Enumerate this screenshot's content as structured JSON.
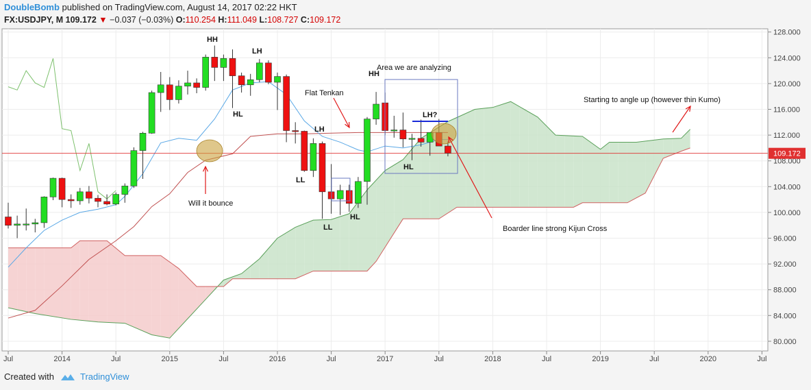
{
  "header": {
    "author": "DoubleBomb",
    "published": "published on TradingView.com, August 14, 2017 02:22 HKT",
    "symbol": "FX:USDJPY, M",
    "last": "109.172",
    "change": "−0.037 (−0.03%)",
    "o_label": "O:",
    "o_value": "110.254",
    "h_label": "H:",
    "h_value": "111.049",
    "l_label": "L:",
    "l_value": "108.727",
    "c_label": "C:",
    "c_value": "109.172"
  },
  "footer": {
    "created_with": "Created with",
    "brand": "TradingView"
  },
  "colors": {
    "up": "#22dd22",
    "down": "#ee1111",
    "tenkan": "#5aa8e6",
    "kijun": "#c05050",
    "senkou_a": "#5aa05a",
    "senkou_b": "#d06060",
    "chikou": "#7cc06c",
    "kumo_bull": "#c9e3c9",
    "kumo_bear": "#f5cbcb",
    "price_line": "#e03030"
  },
  "chart_data": {
    "type": "candlestick",
    "timeframe": "Monthly",
    "y_axis": {
      "min": 78.5,
      "max": 128.5,
      "ticks": [
        "80.000",
        "84.000",
        "88.000",
        "92.000",
        "96.000",
        "100.000",
        "104.000",
        "108.000",
        "112.000",
        "116.000",
        "120.000",
        "124.000",
        "128.000"
      ],
      "last_price": "109.172"
    },
    "x_axis": {
      "ticks": [
        "Jul",
        "2014",
        "Jul",
        "2015",
        "Jul",
        "2016",
        "Jul",
        "2017",
        "Jul",
        "2018",
        "Jul",
        "2019",
        "Jul",
        "2020",
        "Jul"
      ]
    },
    "candles": [
      {
        "t": "2013-07",
        "o": 99.3,
        "h": 101.5,
        "l": 97.5,
        "c": 98.0
      },
      {
        "t": "2013-08",
        "o": 98.0,
        "h": 99.5,
        "l": 96.0,
        "c": 98.2
      },
      {
        "t": "2013-09",
        "o": 98.2,
        "h": 100.6,
        "l": 97.2,
        "c": 98.2
      },
      {
        "t": "2013-10",
        "o": 98.2,
        "h": 99.0,
        "l": 96.9,
        "c": 98.4
      },
      {
        "t": "2013-11",
        "o": 98.4,
        "h": 102.5,
        "l": 97.6,
        "c": 102.4
      },
      {
        "t": "2013-12",
        "o": 102.4,
        "h": 105.4,
        "l": 101.9,
        "c": 105.3
      },
      {
        "t": "2014-01",
        "o": 105.3,
        "h": 105.4,
        "l": 100.8,
        "c": 102.0
      },
      {
        "t": "2014-02",
        "o": 102.0,
        "h": 102.8,
        "l": 100.7,
        "c": 101.8
      },
      {
        "t": "2014-03",
        "o": 101.8,
        "h": 103.8,
        "l": 101.2,
        "c": 103.2
      },
      {
        "t": "2014-04",
        "o": 103.2,
        "h": 104.1,
        "l": 101.4,
        "c": 102.2
      },
      {
        "t": "2014-05",
        "o": 102.2,
        "h": 102.7,
        "l": 100.8,
        "c": 101.7
      },
      {
        "t": "2014-06",
        "o": 101.7,
        "h": 102.8,
        "l": 101.1,
        "c": 101.3
      },
      {
        "t": "2014-07",
        "o": 101.3,
        "h": 103.1,
        "l": 101.1,
        "c": 102.8
      },
      {
        "t": "2014-08",
        "o": 102.8,
        "h": 104.5,
        "l": 101.5,
        "c": 104.1
      },
      {
        "t": "2014-09",
        "o": 104.1,
        "h": 110.1,
        "l": 103.8,
        "c": 109.6
      },
      {
        "t": "2014-10",
        "o": 109.6,
        "h": 112.5,
        "l": 105.2,
        "c": 112.3
      },
      {
        "t": "2014-11",
        "o": 112.3,
        "h": 118.9,
        "l": 112.2,
        "c": 118.6
      },
      {
        "t": "2014-12",
        "o": 118.6,
        "h": 121.8,
        "l": 115.6,
        "c": 119.8
      },
      {
        "t": "2015-01",
        "o": 119.8,
        "h": 121.0,
        "l": 115.9,
        "c": 117.5
      },
      {
        "t": "2015-02",
        "o": 117.5,
        "h": 120.5,
        "l": 116.9,
        "c": 119.6
      },
      {
        "t": "2015-03",
        "o": 119.6,
        "h": 122.0,
        "l": 118.3,
        "c": 120.1
      },
      {
        "t": "2015-04",
        "o": 120.1,
        "h": 120.8,
        "l": 118.5,
        "c": 119.4
      },
      {
        "t": "2015-05",
        "o": 119.4,
        "h": 124.5,
        "l": 118.9,
        "c": 124.1
      },
      {
        "t": "2015-06",
        "o": 124.1,
        "h": 125.9,
        "l": 120.4,
        "c": 122.5
      },
      {
        "t": "2015-07",
        "o": 122.5,
        "h": 124.5,
        "l": 120.4,
        "c": 123.9
      },
      {
        "t": "2015-08",
        "o": 123.9,
        "h": 125.3,
        "l": 116.2,
        "c": 121.2
      },
      {
        "t": "2015-09",
        "o": 121.2,
        "h": 121.7,
        "l": 118.6,
        "c": 119.8
      },
      {
        "t": "2015-10",
        "o": 119.8,
        "h": 121.5,
        "l": 118.1,
        "c": 120.6
      },
      {
        "t": "2015-11",
        "o": 120.6,
        "h": 123.8,
        "l": 120.2,
        "c": 123.2
      },
      {
        "t": "2015-12",
        "o": 123.2,
        "h": 123.6,
        "l": 119.9,
        "c": 120.2
      },
      {
        "t": "2016-01",
        "o": 120.2,
        "h": 121.7,
        "l": 115.9,
        "c": 121.1
      },
      {
        "t": "2016-02",
        "o": 121.1,
        "h": 121.4,
        "l": 110.9,
        "c": 112.7
      },
      {
        "t": "2016-03",
        "o": 112.7,
        "h": 114.0,
        "l": 110.7,
        "c": 112.6
      },
      {
        "t": "2016-04",
        "o": 112.6,
        "h": 112.7,
        "l": 106.3,
        "c": 106.5
      },
      {
        "t": "2016-05",
        "o": 106.5,
        "h": 111.5,
        "l": 105.5,
        "c": 110.7
      },
      {
        "t": "2016-06",
        "o": 110.7,
        "h": 111.0,
        "l": 99.0,
        "c": 103.2
      },
      {
        "t": "2016-07",
        "o": 103.2,
        "h": 107.5,
        "l": 99.8,
        "c": 102.1
      },
      {
        "t": "2016-08",
        "o": 102.1,
        "h": 104.3,
        "l": 99.6,
        "c": 103.4
      },
      {
        "t": "2016-09",
        "o": 103.4,
        "h": 104.3,
        "l": 100.1,
        "c": 101.4
      },
      {
        "t": "2016-10",
        "o": 101.4,
        "h": 105.5,
        "l": 100.7,
        "c": 104.8
      },
      {
        "t": "2016-11",
        "o": 104.8,
        "h": 114.8,
        "l": 101.2,
        "c": 114.5
      },
      {
        "t": "2016-12",
        "o": 114.5,
        "h": 118.7,
        "l": 113.6,
        "c": 116.8
      },
      {
        "t": "2017-01",
        "o": 117.0,
        "h": 118.6,
        "l": 112.0,
        "c": 112.7
      },
      {
        "t": "2017-02",
        "o": 112.7,
        "h": 115.0,
        "l": 111.6,
        "c": 112.8
      },
      {
        "t": "2017-03",
        "o": 112.8,
        "h": 115.5,
        "l": 110.1,
        "c": 111.4
      },
      {
        "t": "2017-04",
        "o": 111.4,
        "h": 112.2,
        "l": 108.1,
        "c": 111.5
      },
      {
        "t": "2017-05",
        "o": 111.5,
        "h": 114.4,
        "l": 110.2,
        "c": 110.9
      },
      {
        "t": "2017-06",
        "o": 110.9,
        "h": 112.4,
        "l": 108.8,
        "c": 112.4
      },
      {
        "t": "2017-07",
        "o": 112.4,
        "h": 114.5,
        "l": 110.6,
        "c": 110.3
      },
      {
        "t": "2017-08",
        "o": 110.3,
        "h": 111.0,
        "l": 108.7,
        "c": 109.2
      }
    ],
    "tenkan": [
      {
        "t": "2013-07",
        "v": 91.5
      },
      {
        "t": "2013-09",
        "v": 94.5
      },
      {
        "t": "2013-11",
        "v": 97.2
      },
      {
        "t": "2014-01",
        "v": 98.8
      },
      {
        "t": "2014-03",
        "v": 100.0
      },
      {
        "t": "2014-05",
        "v": 100.5
      },
      {
        "t": "2014-07",
        "v": 101.2
      },
      {
        "t": "2014-08",
        "v": 102.5
      },
      {
        "t": "2014-10",
        "v": 106.0
      },
      {
        "t": "2014-12",
        "v": 110.8
      },
      {
        "t": "2015-02",
        "v": 111.5
      },
      {
        "t": "2015-04",
        "v": 111.2
      },
      {
        "t": "2015-06",
        "v": 114.5
      },
      {
        "t": "2015-08",
        "v": 119.0
      },
      {
        "t": "2015-10",
        "v": 120.1
      },
      {
        "t": "2015-12",
        "v": 120.3
      },
      {
        "t": "2016-02",
        "v": 118.3
      },
      {
        "t": "2016-04",
        "v": 114.2
      },
      {
        "t": "2016-06",
        "v": 111.8
      },
      {
        "t": "2016-08",
        "v": 110.9
      },
      {
        "t": "2016-10",
        "v": 109.7
      },
      {
        "t": "2016-11",
        "v": 109.4
      },
      {
        "t": "2017-01",
        "v": 110.3
      },
      {
        "t": "2017-03",
        "v": 110.0
      },
      {
        "t": "2017-05",
        "v": 110.5
      },
      {
        "t": "2017-07",
        "v": 111.3
      },
      {
        "t": "2017-08",
        "v": 111.3
      }
    ],
    "kijun": [
      {
        "t": "2013-07",
        "v": 83.6
      },
      {
        "t": "2013-10",
        "v": 84.8
      },
      {
        "t": "2014-01",
        "v": 88.6
      },
      {
        "t": "2014-04",
        "v": 92.7
      },
      {
        "t": "2014-07",
        "v": 95.6
      },
      {
        "t": "2014-09",
        "v": 97.8
      },
      {
        "t": "2014-11",
        "v": 100.9
      },
      {
        "t": "2015-01",
        "v": 102.9
      },
      {
        "t": "2015-03",
        "v": 106.2
      },
      {
        "t": "2015-05",
        "v": 108.1
      },
      {
        "t": "2015-08",
        "v": 109.1
      },
      {
        "t": "2015-10",
        "v": 111.8
      },
      {
        "t": "2016-01",
        "v": 112.2
      },
      {
        "t": "2016-04",
        "v": 112.2
      },
      {
        "t": "2016-10",
        "v": 112.4
      },
      {
        "t": "2017-01",
        "v": 112.4
      },
      {
        "t": "2017-08",
        "v": 112.4
      }
    ],
    "chikou": [
      {
        "t": "2013-07",
        "v": 119.5
      },
      {
        "t": "2013-08",
        "v": 119.0
      },
      {
        "t": "2013-09",
        "v": 122.0
      },
      {
        "t": "2013-10",
        "v": 120.1
      },
      {
        "t": "2013-11",
        "v": 119.4
      },
      {
        "t": "2013-12",
        "v": 123.9
      },
      {
        "t": "2014-01",
        "v": 113.0
      },
      {
        "t": "2014-02",
        "v": 112.7
      },
      {
        "t": "2014-03",
        "v": 106.5
      },
      {
        "t": "2014-04",
        "v": 110.7
      },
      {
        "t": "2014-05",
        "v": 103.2
      },
      {
        "t": "2014-06",
        "v": 102.1
      },
      {
        "t": "2014-07",
        "v": 103.4
      }
    ],
    "senkou_a": [
      {
        "t": "2013-07",
        "v": 85.2
      },
      {
        "t": "2013-10",
        "v": 84.3
      },
      {
        "t": "2014-02",
        "v": 83.4
      },
      {
        "t": "2014-05",
        "v": 83.0
      },
      {
        "t": "2014-08",
        "v": 82.8
      },
      {
        "t": "2014-11",
        "v": 81.0
      },
      {
        "t": "2015-01",
        "v": 80.5
      },
      {
        "t": "2015-03",
        "v": 83.5
      },
      {
        "t": "2015-05",
        "v": 86.5
      },
      {
        "t": "2015-07",
        "v": 89.5
      },
      {
        "t": "2015-09",
        "v": 90.5
      },
      {
        "t": "2015-11",
        "v": 92.8
      },
      {
        "t": "2016-01",
        "v": 96.0
      },
      {
        "t": "2016-03",
        "v": 97.7
      },
      {
        "t": "2016-05",
        "v": 98.8
      },
      {
        "t": "2016-07",
        "v": 98.9
      },
      {
        "t": "2016-09",
        "v": 99.8
      },
      {
        "t": "2016-11",
        "v": 103.5
      },
      {
        "t": "2017-01",
        "v": 106.5
      },
      {
        "t": "2017-03",
        "v": 108.2
      },
      {
        "t": "2017-05",
        "v": 111.5
      },
      {
        "t": "2017-08",
        "v": 114.1
      },
      {
        "t": "2017-11",
        "v": 116.0
      },
      {
        "t": "2018-01",
        "v": 116.3
      },
      {
        "t": "2018-03",
        "v": 117.2
      },
      {
        "t": "2018-06",
        "v": 114.8
      },
      {
        "t": "2018-08",
        "v": 112.0
      },
      {
        "t": "2018-11",
        "v": 111.8
      },
      {
        "t": "2019-01",
        "v": 109.8
      },
      {
        "t": "2019-02",
        "v": 110.9
      },
      {
        "t": "2019-05",
        "v": 110.9
      },
      {
        "t": "2019-08",
        "v": 111.4
      },
      {
        "t": "2019-10",
        "v": 111.5
      },
      {
        "t": "2019-11",
        "v": 112.9
      }
    ],
    "senkou_b": [
      {
        "t": "2013-07",
        "v": 94.5
      },
      {
        "t": "2014-02",
        "v": 94.5
      },
      {
        "t": "2014-03",
        "v": 95.6
      },
      {
        "t": "2014-06",
        "v": 95.6
      },
      {
        "t": "2014-08",
        "v": 93.3
      },
      {
        "t": "2014-12",
        "v": 93.3
      },
      {
        "t": "2015-02",
        "v": 91.3
      },
      {
        "t": "2015-04",
        "v": 88.5
      },
      {
        "t": "2015-07",
        "v": 88.5
      },
      {
        "t": "2015-08",
        "v": 89.7
      },
      {
        "t": "2016-03",
        "v": 89.7
      },
      {
        "t": "2016-05",
        "v": 90.9
      },
      {
        "t": "2016-11",
        "v": 90.9
      },
      {
        "t": "2016-12",
        "v": 92.4
      },
      {
        "t": "2017-01",
        "v": 94.6
      },
      {
        "t": "2017-03",
        "v": 99.0
      },
      {
        "t": "2017-07",
        "v": 99.0
      },
      {
        "t": "2017-09",
        "v": 100.8
      },
      {
        "t": "2018-10",
        "v": 100.8
      },
      {
        "t": "2018-11",
        "v": 101.5
      },
      {
        "t": "2019-04",
        "v": 101.5
      },
      {
        "t": "2019-06",
        "v": 103.0
      },
      {
        "t": "2019-08",
        "v": 108.4
      },
      {
        "t": "2019-10",
        "v": 109.5
      },
      {
        "t": "2019-11",
        "v": 110.0
      }
    ],
    "annotations": {
      "HH_2015": "HH",
      "LH_2015": "LH",
      "HL_2015": "HL",
      "LH_2016": "LH",
      "LL_2016a": "LL",
      "LL_2016b": "LL",
      "HL_2016": "HL",
      "HH_2016": "HH",
      "HL_2017": "HL",
      "LH_q": "LH?",
      "area": "Area we are analyzing",
      "tenkan": "Flat Tenkan",
      "bounce": "Will it bounce",
      "kijun_cross": "Boarder line strong Kijun Cross",
      "angle_up": "Starting to angle up (however thin Kumo)"
    }
  }
}
